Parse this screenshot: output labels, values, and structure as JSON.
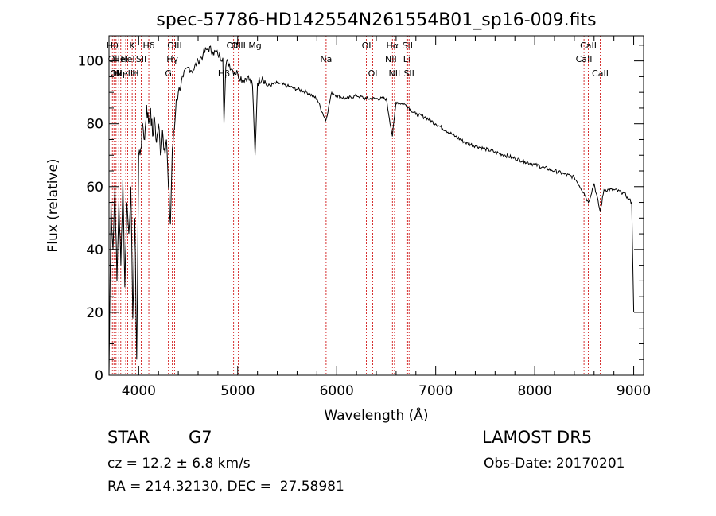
{
  "chart_data": {
    "type": "line",
    "title": "spec-57786-HD142554N261554B01_sp16-009.fits",
    "xlabel": "Wavelength (Å)",
    "ylabel": "Flux (relative)",
    "xlim": [
      3700,
      9100
    ],
    "ylim": [
      0,
      108
    ],
    "x_ticks": [
      4000,
      5000,
      6000,
      7000,
      8000,
      9000
    ],
    "y_ticks": [
      0,
      20,
      40,
      60,
      80,
      100
    ],
    "grid": false,
    "line_color": "#000000",
    "marker_color": "#cc0000",
    "series": [
      {
        "x": [
          3700,
          3720,
          3740,
          3760,
          3780,
          3800,
          3820,
          3840,
          3860,
          3880,
          3900,
          3920,
          3940,
          3960,
          3980,
          4000,
          4020,
          4040,
          4060,
          4080,
          4100,
          4120,
          4140,
          4160,
          4180,
          4200,
          4220,
          4240,
          4260,
          4280,
          4300,
          4320,
          4340,
          4360,
          4380,
          4400,
          4450,
          4500,
          4550,
          4600,
          4650,
          4700,
          4750,
          4800,
          4850,
          4861,
          4880,
          4900,
          4950,
          5000,
          5050,
          5100,
          5150,
          5175,
          5200,
          5250,
          5300,
          5400,
          5500,
          5600,
          5700,
          5800,
          5890,
          5950,
          6000,
          6100,
          6200,
          6300,
          6400,
          6500,
          6563,
          6600,
          6700,
          6800,
          6900,
          7000,
          7100,
          7200,
          7300,
          7400,
          7500,
          7600,
          7700,
          7800,
          7900,
          8000,
          8100,
          8200,
          8300,
          8400,
          8498,
          8542,
          8600,
          8662,
          8700,
          8800,
          8900,
          8980,
          9000
        ],
        "y": [
          0,
          55,
          40,
          60,
          30,
          55,
          35,
          62,
          28,
          55,
          45,
          60,
          18,
          50,
          5,
          70,
          72,
          80,
          75,
          86,
          80,
          85,
          76,
          82,
          74,
          80,
          70,
          78,
          72,
          75,
          60,
          48,
          72,
          78,
          88,
          90,
          95,
          98,
          97,
          100,
          102,
          104,
          103,
          102,
          101,
          80,
          98,
          100,
          97,
          96,
          94,
          95,
          92,
          70,
          93,
          95,
          92,
          93,
          92,
          91,
          90,
          88,
          81,
          90,
          89,
          88,
          89,
          88,
          88,
          88,
          76,
          87,
          86,
          83,
          82,
          80,
          78,
          76,
          74,
          73,
          72,
          71,
          70,
          69,
          68,
          67,
          66,
          65,
          64,
          63,
          58,
          55,
          61,
          52,
          59,
          59,
          58,
          55,
          20
        ]
      }
    ],
    "line_markers": [
      {
        "wavelength": 3734,
        "label": "Hθ",
        "row": 0
      },
      {
        "wavelength": 3750,
        "label": "OII",
        "row": 1
      },
      {
        "wavelength": 3771,
        "label": "OII",
        "row": 2
      },
      {
        "wavelength": 3798,
        "label": "Hη",
        "row": 2
      },
      {
        "wavelength": 3819,
        "label": "HeI",
        "row": 1
      },
      {
        "wavelength": 3869,
        "label": "NeIII",
        "row": 2
      },
      {
        "wavelength": 3889,
        "label": "HeI",
        "row": 1
      },
      {
        "wavelength": 3934,
        "label": "K",
        "row": 0
      },
      {
        "wavelength": 3968,
        "label": "H",
        "row": 2
      },
      {
        "wavelength": 4026,
        "label": "SII",
        "row": 1
      },
      {
        "wavelength": 4102,
        "label": "Hδ",
        "row": 0
      },
      {
        "wavelength": 4300,
        "label": "G",
        "row": 2
      },
      {
        "wavelength": 4340,
        "label": "Hγ",
        "row": 1
      },
      {
        "wavelength": 4363,
        "label": "OIII",
        "row": 0
      },
      {
        "wavelength": 4861,
        "label": "Hβ",
        "row": 2
      },
      {
        "wavelength": 4959,
        "label": "OIII",
        "row": 0
      },
      {
        "wavelength": 5007,
        "label": "OIII",
        "row": 0
      },
      {
        "wavelength": 5175,
        "label": "Mg",
        "row": 0
      },
      {
        "wavelength": 5893,
        "label": "Na",
        "row": 1
      },
      {
        "wavelength": 6300,
        "label": "OI",
        "row": 0
      },
      {
        "wavelength": 6364,
        "label": "OI",
        "row": 2
      },
      {
        "wavelength": 6548,
        "label": "NII",
        "row": 1
      },
      {
        "wavelength": 6563,
        "label": "Hα",
        "row": 0
      },
      {
        "wavelength": 6584,
        "label": "NII",
        "row": 2
      },
      {
        "wavelength": 6708,
        "label": "Li",
        "row": 1
      },
      {
        "wavelength": 6716,
        "label": "SII",
        "row": 0
      },
      {
        "wavelength": 6731,
        "label": "SII",
        "row": 2
      },
      {
        "wavelength": 8498,
        "label": "CaII",
        "row": 1
      },
      {
        "wavelength": 8542,
        "label": "CaII",
        "row": 0
      },
      {
        "wavelength": 8662,
        "label": "CaII",
        "row": 2
      }
    ]
  },
  "info": {
    "obj_type": "STAR",
    "subclass": "G7",
    "survey": "LAMOST DR5",
    "cz": "cz = 12.2 ± 6.8 km/s",
    "obs_date": "Obs-Date: 20170201",
    "radec": "RA = 214.32130, DEC =  27.58981"
  }
}
